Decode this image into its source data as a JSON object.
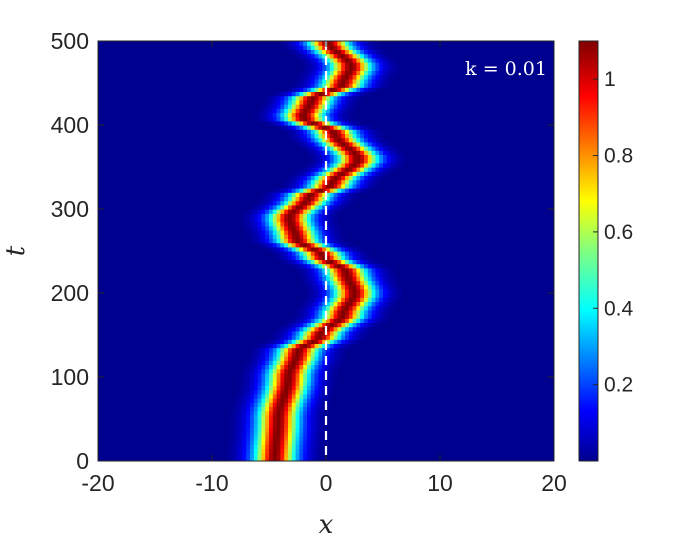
{
  "chart_data": {
    "type": "heatmap",
    "xlabel": "x",
    "ylabel": "t",
    "xlim": [
      -20,
      20
    ],
    "ylim": [
      0,
      500
    ],
    "xticks": [
      -20,
      -10,
      0,
      10,
      20
    ],
    "yticks": [
      0,
      100,
      200,
      300,
      400,
      500
    ],
    "annotation": "k = 0.01",
    "colormap": "jet",
    "clim": [
      0,
      1.1
    ],
    "colorbar_ticks": [
      0.2,
      0.4,
      0.6,
      0.8,
      1
    ],
    "reference_line": {
      "x": 0,
      "style": "dashed",
      "color": "#ffffff"
    },
    "soliton_center": {
      "t": [
        0,
        50,
        100,
        130,
        150,
        175,
        200,
        225,
        245,
        265,
        290,
        315,
        330,
        360,
        390,
        410,
        430,
        450,
        470,
        500
      ],
      "x": [
        -4.5,
        -4.2,
        -3.3,
        -2.5,
        -0.5,
        1.5,
        2.5,
        1.8,
        -0.3,
        -2.6,
        -3.2,
        -1.5,
        0.5,
        2.8,
        0.8,
        -2.0,
        -1.3,
        1.5,
        2.2,
        0.2
      ]
    },
    "soliton_peak_amplitude": 1.1,
    "soliton_width": 1.6
  }
}
